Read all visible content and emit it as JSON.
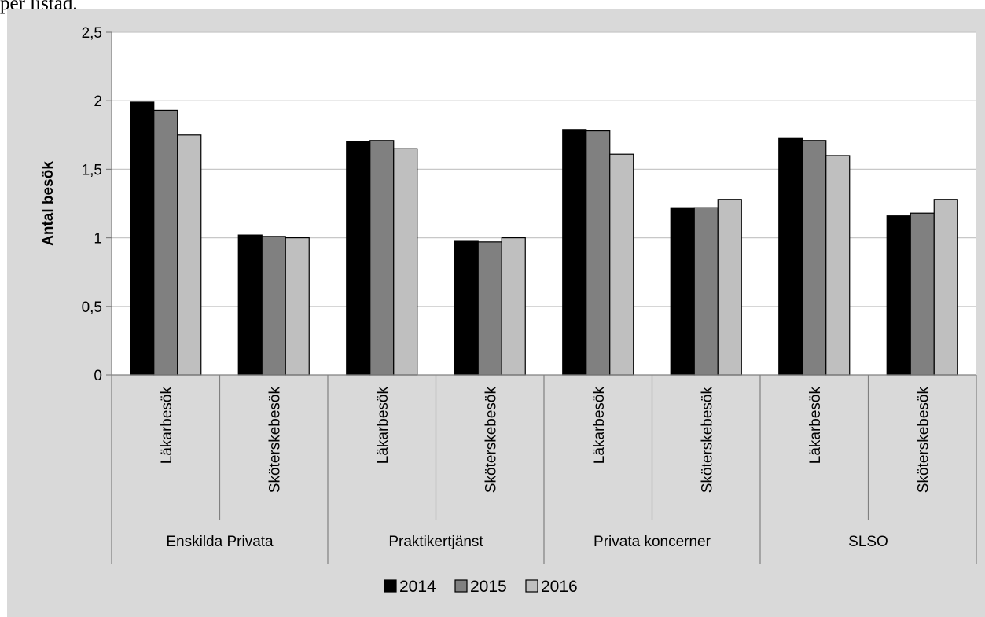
{
  "header_text": "per listad.",
  "chart_data": {
    "type": "bar",
    "title": "",
    "xlabel": "",
    "ylabel": "Antal besök",
    "ylim": [
      0,
      2.5
    ],
    "yticks": [
      "0",
      "0,5",
      "1",
      "1,5",
      "2",
      "2,5"
    ],
    "ytick_values": [
      0,
      0.5,
      1,
      1.5,
      2,
      2.5
    ],
    "grid": true,
    "legend_position": "bottom",
    "groups": [
      "Enskilda Privata",
      "Praktikertjänst",
      "Privata koncerner",
      "SLSO"
    ],
    "subcategories": [
      "Läkarbesök",
      "Sköterskebesök"
    ],
    "categories": [
      "Enskilda Privata / Läkarbesök",
      "Enskilda Privata / Sköterskebesök",
      "Praktikertjänst / Läkarbesök",
      "Praktikertjänst / Sköterskebesök",
      "Privata koncerner / Läkarbesök",
      "Privata koncerner / Sköterskebesök",
      "SLSO / Läkarbesök",
      "SLSO / Sköterskebesök"
    ],
    "series": [
      {
        "name": "2014",
        "color": "#000000",
        "values": [
          1.99,
          1.02,
          1.7,
          0.98,
          1.79,
          1.22,
          1.73,
          1.16
        ]
      },
      {
        "name": "2015",
        "color": "#808080",
        "values": [
          1.93,
          1.01,
          1.71,
          0.97,
          1.78,
          1.22,
          1.71,
          1.18
        ]
      },
      {
        "name": "2016",
        "color": "#bfbfbf",
        "values": [
          1.75,
          1.0,
          1.65,
          1.0,
          1.61,
          1.28,
          1.6,
          1.28
        ]
      }
    ]
  }
}
